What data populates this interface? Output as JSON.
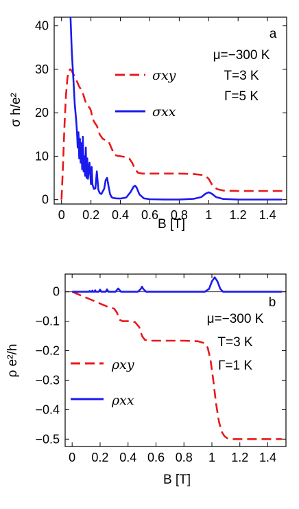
{
  "chart_data": [
    {
      "type": "line",
      "panel_label": "a",
      "xlabel": "B [T]",
      "ylabel": "σ h/e²",
      "xlim": [
        -0.05,
        1.53
      ],
      "ylim": [
        -1,
        42
      ],
      "xticks": [
        "0",
        "0.2",
        "0.4",
        "0.6",
        "0.8",
        "1",
        "1.2",
        "1.4"
      ],
      "yticks": [
        "0",
        "10",
        "20",
        "30",
        "40"
      ],
      "annotations": [
        "μ=−300 K",
        "T=3 K",
        "Γ=5 K"
      ],
      "legend_position": "center-right",
      "series": [
        {
          "name": "σxy",
          "style": "dashed",
          "color": "#e8191a",
          "x": [
            0.0,
            0.01,
            0.02,
            0.03,
            0.04,
            0.05,
            0.06,
            0.07,
            0.08,
            0.09,
            0.1,
            0.11,
            0.12,
            0.13,
            0.14,
            0.15,
            0.16,
            0.17,
            0.18,
            0.19,
            0.2,
            0.21,
            0.22,
            0.24,
            0.26,
            0.28,
            0.3,
            0.32,
            0.34,
            0.36,
            0.38,
            0.4,
            0.42,
            0.44,
            0.46,
            0.48,
            0.5,
            0.52,
            0.55,
            0.6,
            0.7,
            0.8,
            0.9,
            0.95,
            0.98,
            1.0,
            1.02,
            1.04,
            1.06,
            1.1,
            1.2,
            1.3,
            1.4,
            1.5
          ],
          "y": [
            0,
            8,
            17,
            24,
            28,
            29.8,
            30.0,
            29.6,
            28.9,
            28.3,
            27.6,
            26.8,
            26.0,
            25.5,
            24.9,
            24.0,
            22.8,
            22.0,
            21.5,
            21.2,
            20.5,
            18.8,
            18.0,
            17.0,
            15.0,
            14.0,
            13.7,
            13.4,
            11.8,
            10.3,
            10.1,
            10.0,
            9.9,
            9.8,
            9.5,
            8.5,
            7.0,
            6.2,
            6.0,
            6.0,
            6.0,
            6.0,
            5.9,
            5.7,
            5.4,
            4.8,
            3.6,
            2.8,
            2.4,
            2.1,
            2.0,
            2.0,
            2.0,
            2.0
          ]
        },
        {
          "name": "σxx",
          "style": "solid",
          "color": "#1a1aee",
          "x": [
            0.06,
            0.07,
            0.08,
            0.09,
            0.1,
            0.105,
            0.11,
            0.115,
            0.12,
            0.125,
            0.13,
            0.135,
            0.14,
            0.145,
            0.15,
            0.155,
            0.16,
            0.165,
            0.17,
            0.175,
            0.18,
            0.19,
            0.2,
            0.205,
            0.21,
            0.22,
            0.23,
            0.24,
            0.25,
            0.26,
            0.27,
            0.29,
            0.3,
            0.31,
            0.32,
            0.33,
            0.34,
            0.35,
            0.37,
            0.4,
            0.44,
            0.47,
            0.49,
            0.5,
            0.51,
            0.53,
            0.56,
            0.6,
            0.7,
            0.8,
            0.9,
            0.95,
            0.98,
            1.0,
            1.02,
            1.05,
            1.1,
            1.2,
            1.3,
            1.4,
            1.5
          ],
          "y": [
            43,
            34,
            28,
            22,
            18,
            15.5,
            12,
            15.5,
            9.5,
            14,
            8.5,
            13,
            7,
            14.5,
            6.5,
            10,
            5.5,
            12,
            5,
            9.5,
            4.8,
            8.5,
            3.6,
            7.5,
            3.5,
            2.5,
            2.6,
            6.5,
            2.3,
            1.5,
            1.3,
            2.5,
            4.5,
            5.0,
            3.0,
            1.3,
            0.6,
            0.4,
            0.3,
            0.25,
            0.5,
            1.8,
            3.0,
            3.2,
            2.8,
            1.2,
            0.3,
            0.1,
            0.05,
            0.05,
            0.2,
            0.6,
            1.4,
            1.7,
            1.4,
            0.6,
            0.15,
            0.05,
            0.02,
            0.02,
            0.02
          ]
        }
      ]
    },
    {
      "type": "line",
      "panel_label": "b",
      "xlabel": "B [T]",
      "ylabel": "ρ e²/h",
      "xlim": [
        -0.05,
        1.53
      ],
      "ylim": [
        -0.525,
        0.06
      ],
      "xticks": [
        "0",
        "0.2",
        "0.4",
        "0.6",
        "0.8",
        "1",
        "1.2",
        "1.4"
      ],
      "yticks": [
        "0",
        "−0.1",
        "−0.2",
        "−0.3",
        "−0.4",
        "−0.5"
      ],
      "annotations": [
        "μ=−300 K",
        "T=3 K",
        "Γ=1 K"
      ],
      "legend_position": "center-left",
      "series": [
        {
          "name": "ρxy",
          "style": "dashed",
          "color": "#e8191a",
          "x": [
            0.0,
            0.05,
            0.1,
            0.15,
            0.2,
            0.25,
            0.3,
            0.32,
            0.34,
            0.36,
            0.4,
            0.45,
            0.48,
            0.5,
            0.52,
            0.55,
            0.6,
            0.7,
            0.8,
            0.9,
            0.95,
            0.97,
            0.99,
            1.01,
            1.03,
            1.05,
            1.07,
            1.09,
            1.11,
            1.15,
            1.2,
            1.3,
            1.4,
            1.5
          ],
          "y": [
            0.0,
            -0.01,
            -0.02,
            -0.03,
            -0.04,
            -0.05,
            -0.057,
            -0.07,
            -0.095,
            -0.1,
            -0.1,
            -0.103,
            -0.12,
            -0.15,
            -0.163,
            -0.166,
            -0.166,
            -0.166,
            -0.166,
            -0.168,
            -0.175,
            -0.19,
            -0.23,
            -0.3,
            -0.38,
            -0.44,
            -0.475,
            -0.49,
            -0.497,
            -0.5,
            -0.5,
            -0.5,
            -0.5,
            -0.5
          ]
        },
        {
          "name": "ρxx",
          "style": "solid",
          "color": "#1a1aee",
          "x": [
            0.0,
            0.1,
            0.12,
            0.125,
            0.13,
            0.14,
            0.145,
            0.15,
            0.16,
            0.165,
            0.17,
            0.19,
            0.2,
            0.21,
            0.24,
            0.25,
            0.26,
            0.31,
            0.33,
            0.35,
            0.47,
            0.49,
            0.5,
            0.51,
            0.53,
            0.55,
            0.95,
            0.98,
            1.0,
            1.02,
            1.04,
            1.06,
            1.08,
            1.1,
            1.5
          ],
          "y": [
            0.0,
            0.0,
            0.0,
            0.003,
            0.0,
            0.0,
            0.004,
            0.0,
            0.0,
            0.005,
            0.0,
            0.0,
            0.007,
            0.0,
            0.0,
            0.008,
            0.0,
            0.0,
            0.011,
            0.0,
            0.0,
            0.009,
            0.017,
            0.009,
            0.0,
            0.0,
            0.0,
            0.01,
            0.035,
            0.049,
            0.035,
            0.01,
            0.0,
            0.0,
            0.0
          ]
        }
      ]
    }
  ]
}
